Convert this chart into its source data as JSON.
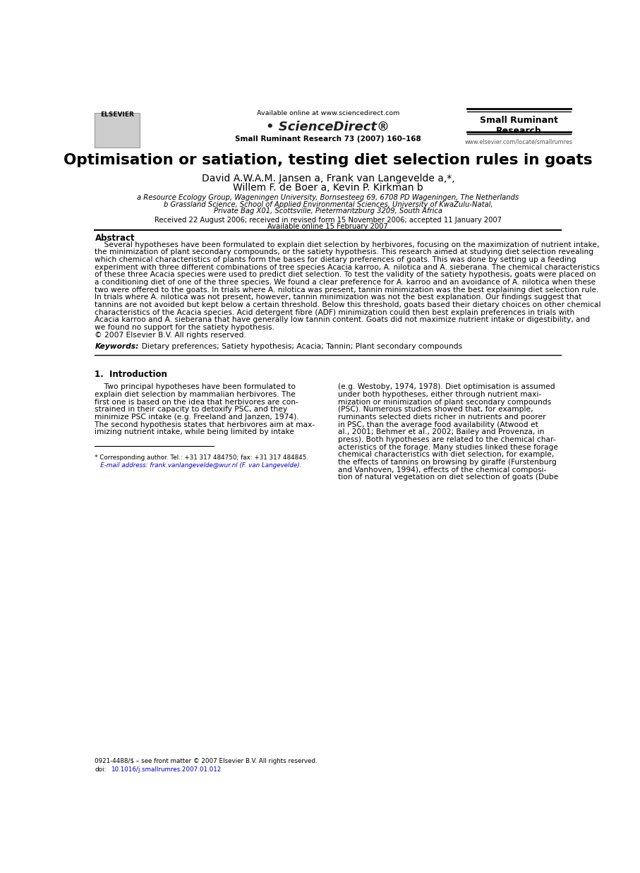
{
  "bg_color": "#ffffff",
  "page_width": 9.07,
  "page_height": 12.37,
  "title": "Optimisation or satiation, testing diet selection rules in goats",
  "authors_line1": "David A.W.A.M. Jansen a, Frank van Langevelde a,*,",
  "authors_line2": "Willem F. de Boer a, Kevin P. Kirkman b",
  "affil_a": "a Resource Ecology Group, Wageningen University, Bornsesteeg 69, 6708 PD Wageningen, The Netherlands",
  "affil_b": "b Grassland Science, School of Applied Environmental Sciences, University of KwaZulu-Natal,",
  "affil_b2": "Private Bag X01, Scottsville, Pietermaritzburg 3209, South Africa",
  "received": "Received 22 August 2006; received in revised form 15 November 2006; accepted 11 January 2007",
  "available": "Available online 15 February 2007",
  "abstract_heading": "Abstract",
  "abstract_text": "    Several hypotheses have been formulated to explain diet selection by herbivores, focusing on the maximization of nutrient intake,\nthe minimization of plant secondary compounds, or the satiety hypothesis. This research aimed at studying diet selection revealing\nwhich chemical characteristics of plants form the bases for dietary preferences of goats. This was done by setting up a feeding\nexperiment with three different combinations of tree species Acacia karroo, A. nilotica and A. sieberana. The chemical characteristics\nof these three Acacia species were used to predict diet selection. To test the validity of the satiety hypothesis, goats were placed on\na conditioning diet of one of the three species. We found a clear preference for A. karroo and an avoidance of A. nilotica when these\ntwo were offered to the goats. In trials where A. nilotica was present, tannin minimization was the best explaining diet selection rule.\nIn trials where A. nilotica was not present, however, tannin minimization was not the best explanation. Our findings suggest that\ntannins are not avoided but kept below a certain threshold. Below this threshold, goats based their dietary choices on other chemical\ncharacteristics of the Acacia species. Acid detergent fibre (ADF) minimization could then best explain preferences in trials with\nAcacia karroo and A. sieberana that have generally low tannin content. Goats did not maximize nutrient intake or digestibility, and\nwe found no support for the satiety hypothesis.\n© 2007 Elsevier B.V. All rights reserved.",
  "keywords_label": "Keywords:",
  "keywords_text": "  Dietary preferences; Satiety hypothesis; Acacia; Tannin; Plant secondary compounds",
  "section1_heading": "1.  Introduction",
  "intro_col1": "    Two principal hypotheses have been formulated to\nexplain diet selection by mammalian herbivores. The\nfirst one is based on the idea that herbivores are con-\nstrained in their capacity to detoxify PSC, and they\nminimize PSC intake (e.g. Freeland and Janzen, 1974).\nThe second hypothesis states that herbivores aim at max-\nimizing nutrient intake, while being limited by intake",
  "intro_col2": "(e.g. Westoby, 1974, 1978). Diet optimisation is assumed\nunder both hypotheses, either through nutrient maxi-\nmization or minimization of plant secondary compounds\n(PSC). Numerous studies showed that, for example,\nruminants selected diets richer in nutrients and poorer\nin PSC, than the average food availability (Atwood et\nal., 2001; Behmer et al., 2002; Bailey and Provenza, in\npress). Both hypotheses are related to the chemical char-\nacteristics of the forage. Many studies linked these forage\nchemical characteristics with diet selection, for example,\nthe effects of tannins on browsing by giraffe (Furstenburg\nand Vanhoven, 1994), effects of the chemical composi-\ntion of natural vegetation on diet selection of goats (Dube",
  "footnote_star": "* Corresponding author. Tel.: +31 317 484750; fax: +31 317 484845.",
  "footnote_email": "   E-mail address: frank.vanlangevelde@wur.nl (F. van Langevelde).",
  "footnote_issn": "0921-4488/$ – see front matter © 2007 Elsevier B.V. All rights reserved.",
  "footnote_doi": "10.1016/j.smallrumres.2007.01.012",
  "link_color": "#0000cc",
  "text_color": "#000000"
}
